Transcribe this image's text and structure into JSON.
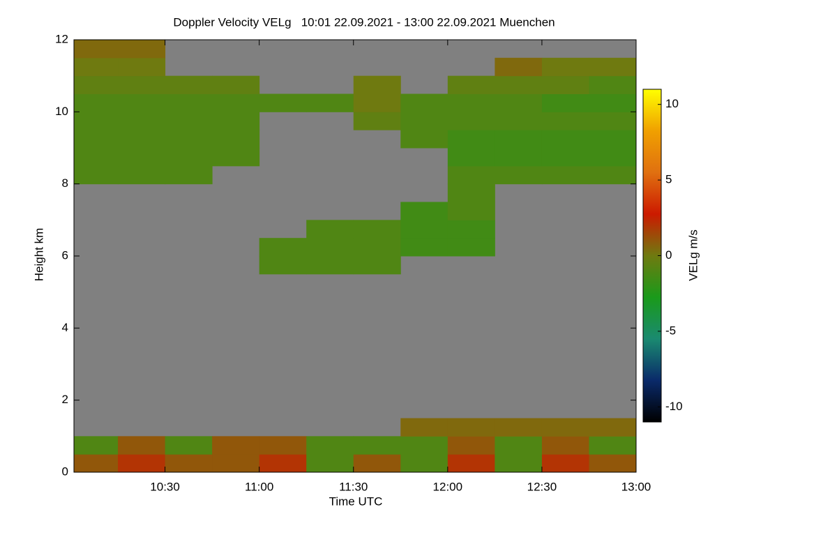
{
  "chart_data": {
    "type": "heatmap",
    "title": "Doppler Velocity VELg   10:01 22.09.2021 - 13:00 22.09.2021 Muenchen",
    "x_label": "Time UTC",
    "y_label": "Height km",
    "colorbar_label": "VELg m/s",
    "x_edges": [
      "10:01",
      "10:15",
      "10:30",
      "10:45",
      "11:00",
      "11:15",
      "11:30",
      "11:45",
      "12:00",
      "12:15",
      "12:30",
      "12:45",
      "13:00"
    ],
    "y_edges": [
      0,
      0.5,
      1,
      1.5,
      2,
      2.5,
      3,
      3.5,
      4,
      4.5,
      5,
      5.5,
      6,
      6.5,
      7,
      7.5,
      8,
      8.5,
      9,
      9.5,
      10,
      10.5,
      11,
      11.5,
      12
    ],
    "values": [
      [
        1,
        2,
        1,
        1,
        2,
        -1,
        1,
        -1,
        2,
        -1,
        2,
        1
      ],
      [
        -1,
        1,
        -1,
        1,
        1,
        -1,
        -1,
        -1,
        1,
        -1,
        1,
        -1
      ],
      [
        null,
        null,
        null,
        null,
        null,
        null,
        null,
        0.5,
        0.5,
        0.5,
        0.5,
        0.5
      ],
      [
        null,
        null,
        null,
        null,
        null,
        null,
        null,
        null,
        null,
        null,
        null,
        null
      ],
      [
        null,
        null,
        null,
        null,
        null,
        null,
        null,
        null,
        null,
        null,
        null,
        null
      ],
      [
        null,
        null,
        null,
        null,
        null,
        null,
        null,
        null,
        null,
        null,
        null,
        null
      ],
      [
        null,
        null,
        null,
        null,
        null,
        null,
        null,
        null,
        null,
        null,
        null,
        null
      ],
      [
        null,
        null,
        null,
        null,
        null,
        null,
        null,
        null,
        null,
        null,
        null,
        null
      ],
      [
        null,
        null,
        null,
        null,
        null,
        null,
        null,
        null,
        null,
        null,
        null,
        null
      ],
      [
        null,
        null,
        null,
        null,
        null,
        null,
        null,
        null,
        null,
        null,
        null,
        null
      ],
      [
        null,
        null,
        null,
        null,
        null,
        null,
        null,
        null,
        null,
        null,
        null,
        null
      ],
      [
        null,
        null,
        null,
        null,
        -1,
        -1,
        -1,
        null,
        null,
        null,
        null,
        null
      ],
      [
        null,
        null,
        null,
        null,
        -1,
        -1,
        -1,
        -1.5,
        -1.5,
        null,
        null,
        null
      ],
      [
        null,
        null,
        null,
        null,
        null,
        -1,
        -1,
        -1.5,
        -1.5,
        null,
        null,
        null
      ],
      [
        null,
        null,
        null,
        null,
        null,
        null,
        null,
        -1.5,
        -1,
        null,
        null,
        null
      ],
      [
        null,
        null,
        null,
        null,
        null,
        null,
        null,
        null,
        -1,
        null,
        null,
        null
      ],
      [
        -1,
        -1,
        -1,
        null,
        null,
        null,
        null,
        null,
        -1,
        -1,
        -1,
        -1
      ],
      [
        -1,
        -1,
        -1,
        -1,
        null,
        null,
        null,
        null,
        -1.5,
        -1.5,
        -1.5,
        -1.5
      ],
      [
        -1,
        -1,
        -1,
        -1,
        null,
        null,
        null,
        -1,
        -1.5,
        -1.5,
        -1.5,
        -1.5
      ],
      [
        -1,
        -1,
        -1,
        -1,
        null,
        null,
        -0.5,
        -1,
        -1,
        -1,
        -1,
        -1
      ],
      [
        -1,
        -1,
        -1,
        -1,
        -1,
        -1,
        0,
        -1,
        -1,
        -1,
        -1.5,
        -1.5
      ],
      [
        -0.5,
        -0.5,
        -0.5,
        -0.5,
        null,
        null,
        0,
        null,
        -0.5,
        -0.5,
        -0.5,
        -1
      ],
      [
        0,
        0,
        null,
        null,
        null,
        null,
        null,
        null,
        null,
        0.5,
        0,
        0
      ],
      [
        0.5,
        0.5,
        null,
        null,
        null,
        null,
        null,
        null,
        null,
        null,
        null,
        null
      ]
    ],
    "xlim": [
      "10:01",
      "13:00"
    ],
    "xticks": [
      "10:30",
      "11:00",
      "11:30",
      "12:00",
      "12:30",
      "13:00"
    ],
    "ylim": [
      0,
      12
    ],
    "yticks": [
      0,
      2,
      4,
      6,
      8,
      10,
      12
    ],
    "zlim": [
      -11,
      11
    ],
    "zticks": [
      -10,
      -5,
      0,
      5,
      10
    ],
    "colormap": [
      "#000000",
      "#0a2a6a",
      "#1a8a70",
      "#1a9a1a",
      "#6f7a10",
      "#cc1a00",
      "#e07010",
      "#f0a000",
      "#ffff00"
    ],
    "missing_color": "#808080"
  }
}
